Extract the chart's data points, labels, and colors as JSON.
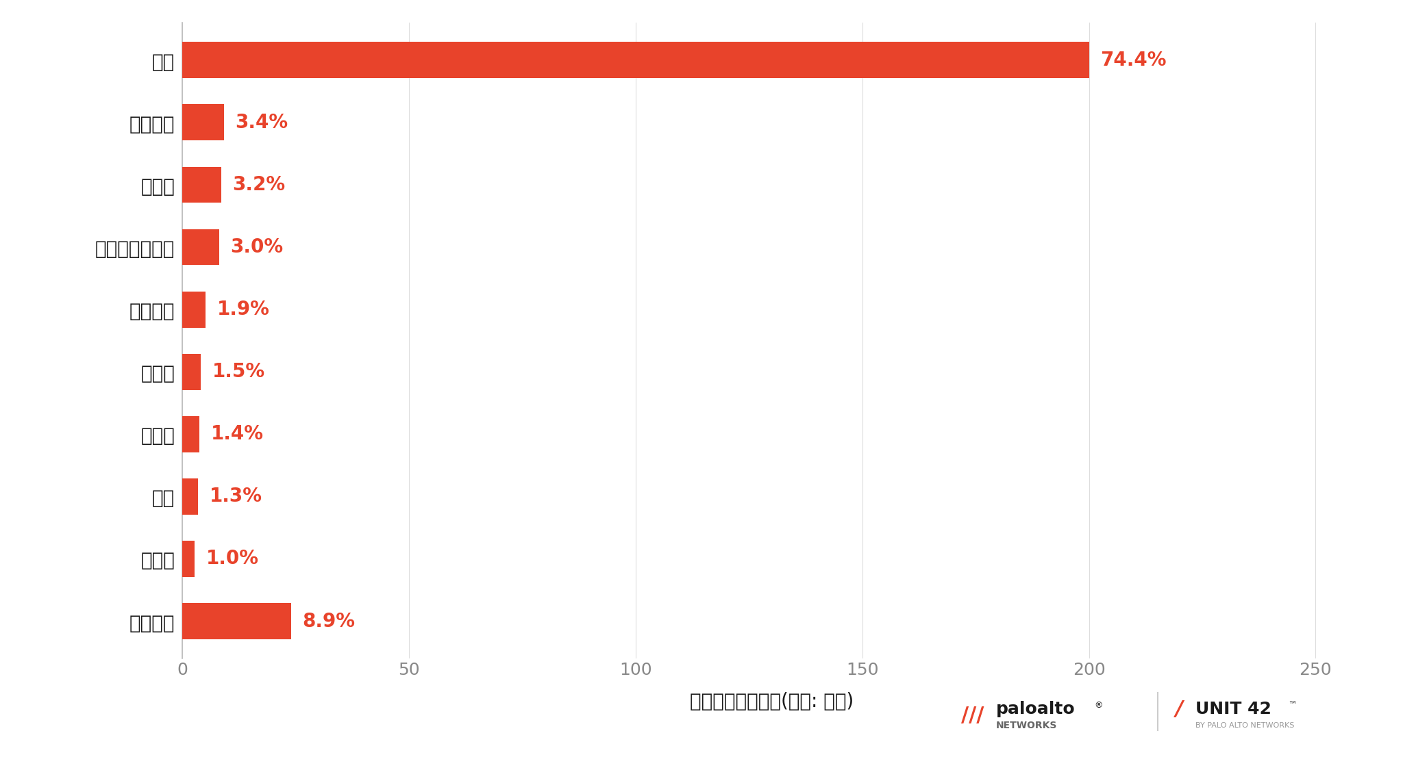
{
  "categories": [
    "そのほか",
    "インド",
    "英国",
    "ロシア",
    "スイス",
    "オランダ",
    "ルクセンブルク",
    "ドイツ",
    "フランス",
    "米国"
  ],
  "values": [
    24.0,
    2.7,
    3.5,
    3.8,
    4.1,
    5.1,
    8.1,
    8.6,
    9.2,
    200.0
  ],
  "percentages": [
    "8.9%",
    "1.0%",
    "1.3%",
    "1.4%",
    "1.5%",
    "1.9%",
    "3.0%",
    "3.2%",
    "3.4%",
    "74.4%"
  ],
  "bar_color": "#e8432b",
  "background_color": "#ffffff",
  "text_color_label": "#1a1a1a",
  "text_color_pct": "#e8432b",
  "xlabel": "攻撃セッション数(単位: 百万)",
  "xlim": [
    0,
    260
  ],
  "xticks": [
    0,
    50,
    100,
    150,
    200,
    250
  ],
  "grid_color": "#dddddd",
  "label_fontsize": 20,
  "pct_fontsize": 20,
  "xlabel_fontsize": 20,
  "tick_fontsize": 18
}
